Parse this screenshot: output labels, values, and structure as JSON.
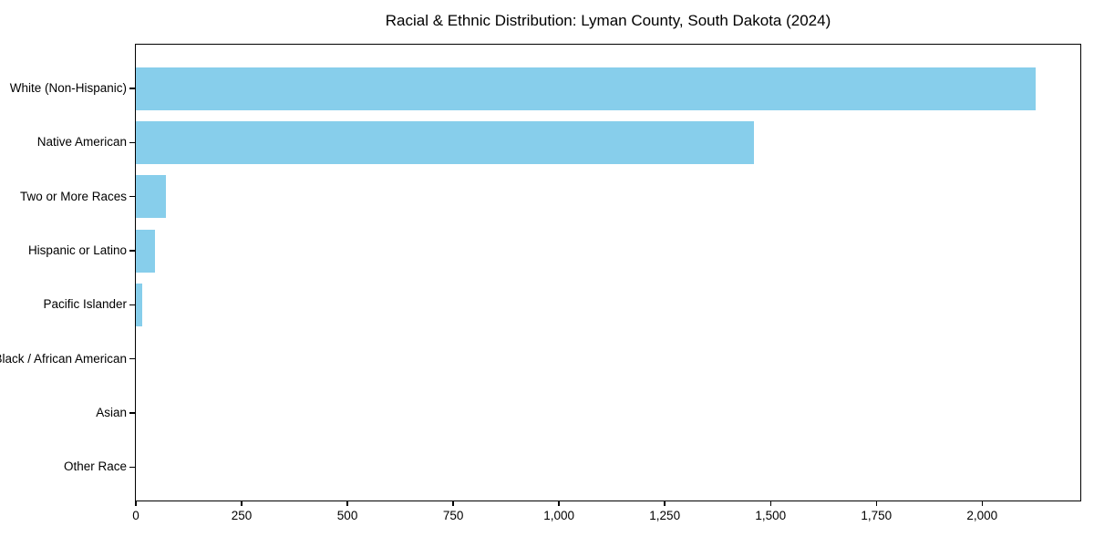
{
  "chart_data": {
    "type": "bar",
    "orientation": "horizontal",
    "title": "Racial & Ethnic Distribution: Lyman County, South Dakota (2024)",
    "categories": [
      "White (Non-Hispanic)",
      "Native American",
      "Two or More Races",
      "Hispanic or Latino",
      "Pacific Islander",
      "Black / African American",
      "Asian",
      "Other Race"
    ],
    "values": [
      2127,
      1461,
      72,
      45,
      15,
      0,
      0,
      0
    ],
    "xlabel": "",
    "ylabel": "",
    "xlim": [
      0,
      2234
    ],
    "xticks": [
      0,
      250,
      500,
      750,
      1000,
      1250,
      1500,
      1750,
      2000
    ],
    "xtick_labels": [
      "0",
      "250",
      "500",
      "750",
      "1,000",
      "1,250",
      "1,500",
      "1,750",
      "2,000"
    ],
    "bar_color": "#87CEEB",
    "background_color": "#FFFFFF",
    "grid": false,
    "legend": null
  }
}
